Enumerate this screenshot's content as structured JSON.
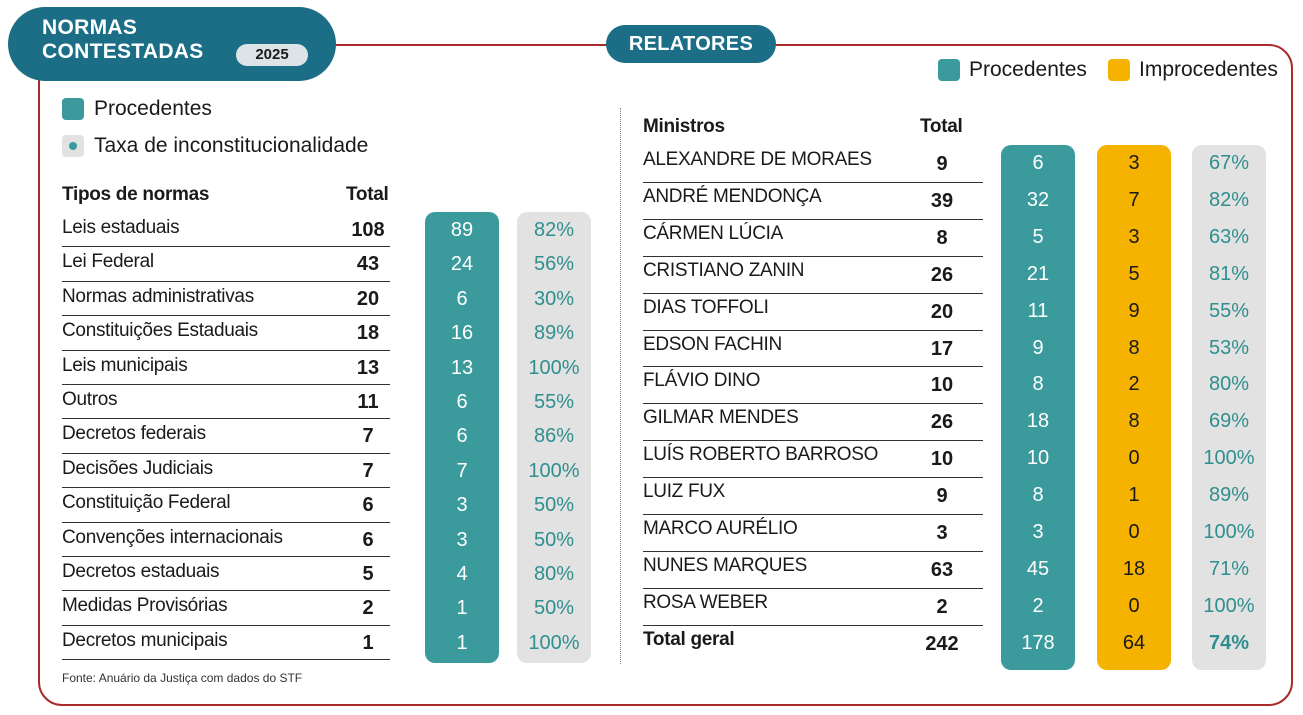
{
  "colors": {
    "procedentes": "#3a9a9c",
    "improcedentes": "#f5b300",
    "taxa": "#e2e2e2",
    "frame": "#a92b2b",
    "title_bg": "#1b6e86"
  },
  "left": {
    "title": "NORMAS\nCONTESTADAS",
    "year": "2025",
    "legend": [
      {
        "label": "Procedentes",
        "icon": "teal-square-icon"
      },
      {
        "label": "Taxa de inconstitucionalidade",
        "icon": "gray-dot-square-icon"
      }
    ],
    "headers": {
      "type": "Tipos de normas",
      "total": "Total"
    },
    "source": "Fonte: Anuário da Justiça com dados do STF"
  },
  "right": {
    "title": "RELATORES",
    "legend": [
      {
        "label": "Procedentes",
        "icon": "teal-square-icon"
      },
      {
        "label": "Improcedentes",
        "icon": "yellow-square-icon"
      }
    ],
    "headers": {
      "name": "Ministros",
      "total": "Total"
    }
  },
  "chart_data": [
    {
      "type": "table",
      "columns": [
        "Tipos de normas",
        "Total",
        "Procedentes",
        "Taxa de inconstitucionalidade"
      ],
      "rows": [
        {
          "label": "Leis estaduais",
          "total": "108",
          "procedentes": "89",
          "taxa": "82%"
        },
        {
          "label": "Lei Federal",
          "total": "43",
          "procedentes": "24",
          "taxa": "56%"
        },
        {
          "label": "Normas administrativas",
          "total": "20",
          "procedentes": "6",
          "taxa": "30%"
        },
        {
          "label": "Constituições Estaduais",
          "total": "18",
          "procedentes": "16",
          "taxa": "89%"
        },
        {
          "label": "Leis municipais",
          "total": "13",
          "procedentes": "13",
          "taxa": "100%"
        },
        {
          "label": "Outros",
          "total": "11",
          "procedentes": "6",
          "taxa": "55%"
        },
        {
          "label": "Decretos federais",
          "total": "7",
          "procedentes": "6",
          "taxa": "86%"
        },
        {
          "label": "Decisões Judiciais",
          "total": "7",
          "procedentes": "7",
          "taxa": "100%"
        },
        {
          "label": "Constituição Federal",
          "total": "6",
          "procedentes": "3",
          "taxa": "50%"
        },
        {
          "label": "Convenções internacionais",
          "total": "6",
          "procedentes": "3",
          "taxa": "50%"
        },
        {
          "label": "Decretos estaduais",
          "total": "5",
          "procedentes": "4",
          "taxa": "80%"
        },
        {
          "label": "Medidas Provisórias",
          "total": "2",
          "procedentes": "1",
          "taxa": "50%"
        },
        {
          "label": "Decretos municipais",
          "total": "1",
          "procedentes": "1",
          "taxa": "100%"
        }
      ]
    },
    {
      "type": "table",
      "columns": [
        "Ministros",
        "Total",
        "Procedentes",
        "Improcedentes",
        "Taxa"
      ],
      "rows": [
        {
          "label": "ALEXANDRE DE MORAES",
          "total": "9",
          "procedentes": "6",
          "improcedentes": "3",
          "taxa": "67%"
        },
        {
          "label": "ANDRÉ MENDONÇA",
          "total": "39",
          "procedentes": "32",
          "improcedentes": "7",
          "taxa": "82%"
        },
        {
          "label": "CÁRMEN LÚCIA",
          "total": "8",
          "procedentes": "5",
          "improcedentes": "3",
          "taxa": "63%"
        },
        {
          "label": "CRISTIANO ZANIN",
          "total": "26",
          "procedentes": "21",
          "improcedentes": "5",
          "taxa": "81%"
        },
        {
          "label": "DIAS TOFFOLI",
          "total": "20",
          "procedentes": "11",
          "improcedentes": "9",
          "taxa": "55%"
        },
        {
          "label": "EDSON FACHIN",
          "total": "17",
          "procedentes": "9",
          "improcedentes": "8",
          "taxa": "53%"
        },
        {
          "label": "FLÁVIO DINO",
          "total": "10",
          "procedentes": "8",
          "improcedentes": "2",
          "taxa": "80%"
        },
        {
          "label": "GILMAR MENDES",
          "total": "26",
          "procedentes": "18",
          "improcedentes": "8",
          "taxa": "69%"
        },
        {
          "label": "LUÍS ROBERTO BARROSO",
          "total": "10",
          "procedentes": "10",
          "improcedentes": "0",
          "taxa": "100%"
        },
        {
          "label": "LUIZ FUX",
          "total": "9",
          "procedentes": "8",
          "improcedentes": "1",
          "taxa": "89%"
        },
        {
          "label": "MARCO AURÉLIO",
          "total": "3",
          "procedentes": "3",
          "improcedentes": "0",
          "taxa": "100%"
        },
        {
          "label": "NUNES MARQUES",
          "total": "63",
          "procedentes": "45",
          "improcedentes": "18",
          "taxa": "71%"
        },
        {
          "label": "ROSA WEBER",
          "total": "2",
          "procedentes": "2",
          "improcedentes": "0",
          "taxa": "100%"
        },
        {
          "label": "Total geral",
          "total": "242",
          "procedentes": "178",
          "improcedentes": "64",
          "taxa": "74%"
        }
      ]
    }
  ]
}
